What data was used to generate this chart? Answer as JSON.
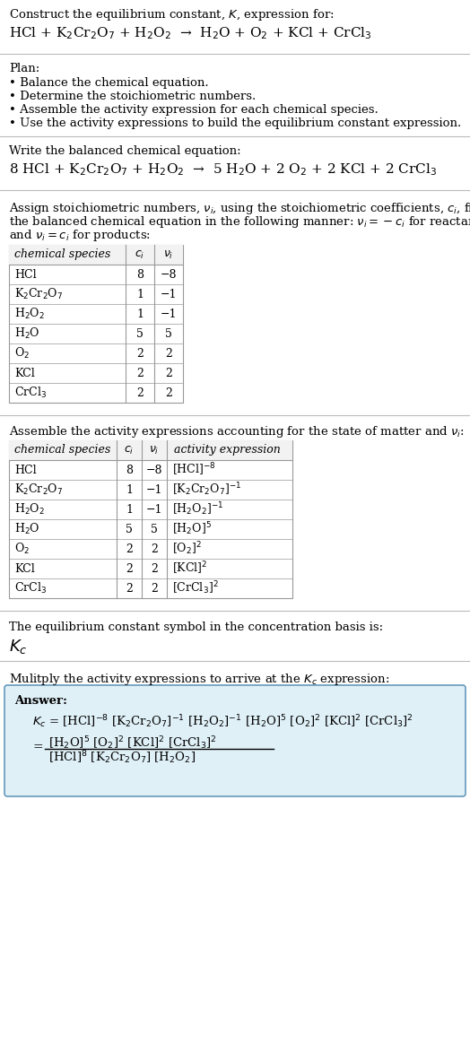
{
  "title_line1": "Construct the equilibrium constant, $K$, expression for:",
  "title_line2": "HCl + K$_2$Cr$_2$O$_7$ + H$_2$O$_2$  →  H$_2$O + O$_2$ + KCl + CrCl$_3$",
  "plan_header": "Plan:",
  "plan_items": [
    "• Balance the chemical equation.",
    "• Determine the stoichiometric numbers.",
    "• Assemble the activity expression for each chemical species.",
    "• Use the activity expressions to build the equilibrium constant expression."
  ],
  "balanced_header": "Write the balanced chemical equation:",
  "balanced_eq": "8 HCl + K$_2$Cr$_2$O$_7$ + H$_2$O$_2$  →  5 H$_2$O + 2 O$_2$ + 2 KCl + 2 CrCl$_3$",
  "stoich_header_lines": [
    "Assign stoichiometric numbers, $\\nu_i$, using the stoichiometric coefficients, $c_i$, from",
    "the balanced chemical equation in the following manner: $\\nu_i = -c_i$ for reactants",
    "and $\\nu_i = c_i$ for products:"
  ],
  "table1_cols": [
    "chemical species",
    "$c_i$",
    "$\\nu_i$"
  ],
  "table1_data": [
    [
      "HCl",
      "8",
      "−8"
    ],
    [
      "K$_2$Cr$_2$O$_7$",
      "1",
      "−1"
    ],
    [
      "H$_2$O$_2$",
      "1",
      "−1"
    ],
    [
      "H$_2$O",
      "5",
      "5"
    ],
    [
      "O$_2$",
      "2",
      "2"
    ],
    [
      "KCl",
      "2",
      "2"
    ],
    [
      "CrCl$_3$",
      "2",
      "2"
    ]
  ],
  "activity_header": "Assemble the activity expressions accounting for the state of matter and $\\nu_i$:",
  "table2_cols": [
    "chemical species",
    "$c_i$",
    "$\\nu_i$",
    "activity expression"
  ],
  "table2_data": [
    [
      "HCl",
      "8",
      "−8",
      "[HCl]$^{-8}$"
    ],
    [
      "K$_2$Cr$_2$O$_7$",
      "1",
      "−1",
      "[K$_2$Cr$_2$O$_7$]$^{-1}$"
    ],
    [
      "H$_2$O$_2$",
      "1",
      "−1",
      "[H$_2$O$_2$]$^{-1}$"
    ],
    [
      "H$_2$O",
      "5",
      "5",
      "[H$_2$O]$^5$"
    ],
    [
      "O$_2$",
      "2",
      "2",
      "[O$_2$]$^2$"
    ],
    [
      "KCl",
      "2",
      "2",
      "[KCl]$^2$"
    ],
    [
      "CrCl$_3$",
      "2",
      "2",
      "[CrCl$_3$]$^2$"
    ]
  ],
  "kc_header": "The equilibrium constant symbol in the concentration basis is:",
  "kc_symbol": "$K_c$",
  "multiply_header": "Mulitply the activity expressions to arrive at the $K_c$ expression:",
  "answer_label": "Answer:",
  "answer_line1": "$K_c$ = [HCl]$^{-8}$ [K$_2$Cr$_2$O$_7$]$^{-1}$ [H$_2$O$_2$]$^{-1}$ [H$_2$O]$^5$ [O$_2$]$^2$ [KCl]$^2$ [CrCl$_3$]$^2$",
  "answer_eq_sign": "=",
  "answer_num": "[H$_2$O]$^5$ [O$_2$]$^2$ [KCl]$^2$ [CrCl$_3$]$^2$",
  "answer_den": "[HCl]$^8$ [K$_2$Cr$_2$O$_7$] [H$_2$O$_2$]",
  "bg_color": "#ffffff",
  "text_color": "#000000",
  "table_border_color": "#999999",
  "answer_box_fill": "#dff0f7",
  "answer_box_border": "#6699bb",
  "separator_color": "#bbbbbb",
  "font_size_body": 9.5,
  "font_size_table": 9,
  "font_size_eq": 11,
  "font_size_kc": 13
}
